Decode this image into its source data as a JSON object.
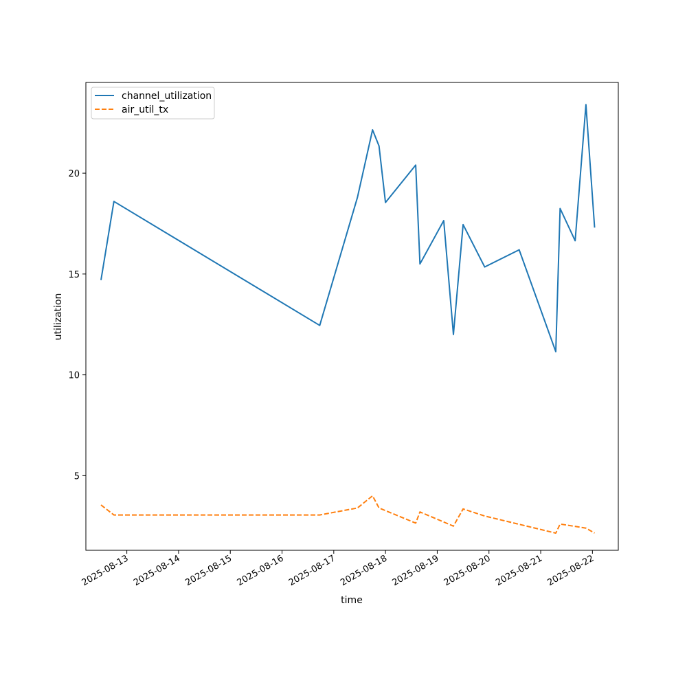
{
  "chart_data": {
    "type": "line",
    "title": "",
    "xlabel": "time",
    "ylabel": "utilization",
    "x_ticks": [
      "2025-08-13",
      "2025-08-14",
      "2025-08-15",
      "2025-08-16",
      "2025-08-17",
      "2025-08-18",
      "2025-08-19",
      "2025-08-20",
      "2025-08-21",
      "2025-08-22"
    ],
    "y_ticks": [
      5,
      10,
      15,
      20
    ],
    "xlim": [
      "2025-08-12T05:00",
      "2025-08-22T12:00"
    ],
    "ylim": [
      1.3,
      24.5
    ],
    "grid": false,
    "legend_position": "top-left",
    "series": [
      {
        "name": "channel_utilization",
        "color": "#1f77b4",
        "style": "solid",
        "points": [
          {
            "x": "2025-08-12T12:00",
            "y": 14.7
          },
          {
            "x": "2025-08-12T18:00",
            "y": 18.6
          },
          {
            "x": "2025-08-16T17:30",
            "y": 12.45
          },
          {
            "x": "2025-08-17T11:00",
            "y": 18.8
          },
          {
            "x": "2025-08-17T18:00",
            "y": 22.15
          },
          {
            "x": "2025-08-17T21:00",
            "y": 21.35
          },
          {
            "x": "2025-08-18T00:00",
            "y": 18.55
          },
          {
            "x": "2025-08-18T14:00",
            "y": 20.4
          },
          {
            "x": "2025-08-18T16:00",
            "y": 15.5
          },
          {
            "x": "2025-08-19T03:00",
            "y": 17.65
          },
          {
            "x": "2025-08-19T07:30",
            "y": 12.0
          },
          {
            "x": "2025-08-19T12:00",
            "y": 17.45
          },
          {
            "x": "2025-08-19T22:00",
            "y": 15.35
          },
          {
            "x": "2025-08-20T14:00",
            "y": 16.2
          },
          {
            "x": "2025-08-21T07:00",
            "y": 11.15
          },
          {
            "x": "2025-08-21T09:00",
            "y": 18.25
          },
          {
            "x": "2025-08-21T16:00",
            "y": 16.65
          },
          {
            "x": "2025-08-21T21:00",
            "y": 23.4
          },
          {
            "x": "2025-08-22T01:00",
            "y": 17.3
          }
        ]
      },
      {
        "name": "air_util_tx",
        "color": "#ff7f0e",
        "style": "dashed",
        "points": [
          {
            "x": "2025-08-12T12:00",
            "y": 3.55
          },
          {
            "x": "2025-08-12T18:00",
            "y": 3.05
          },
          {
            "x": "2025-08-16T17:30",
            "y": 3.05
          },
          {
            "x": "2025-08-17T11:00",
            "y": 3.4
          },
          {
            "x": "2025-08-17T18:00",
            "y": 4.0
          },
          {
            "x": "2025-08-17T21:00",
            "y": 3.4
          },
          {
            "x": "2025-08-18T14:00",
            "y": 2.65
          },
          {
            "x": "2025-08-18T16:00",
            "y": 3.2
          },
          {
            "x": "2025-08-19T07:30",
            "y": 2.5
          },
          {
            "x": "2025-08-19T12:00",
            "y": 3.35
          },
          {
            "x": "2025-08-19T22:00",
            "y": 3.0
          },
          {
            "x": "2025-08-21T07:00",
            "y": 2.15
          },
          {
            "x": "2025-08-21T09:00",
            "y": 2.6
          },
          {
            "x": "2025-08-21T21:00",
            "y": 2.4
          },
          {
            "x": "2025-08-22T01:00",
            "y": 2.15
          }
        ]
      }
    ]
  }
}
